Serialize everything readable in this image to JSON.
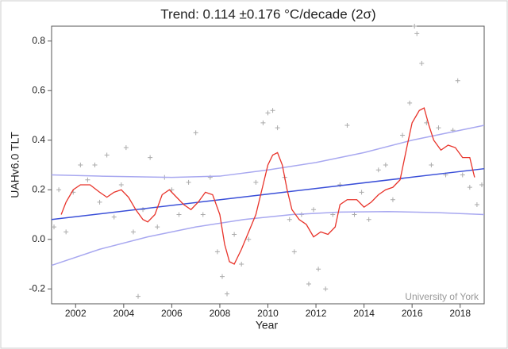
{
  "chart_data": {
    "type": "scatter",
    "title": "Trend: 0.114 ±0.176 °C/decade (2σ)",
    "x_label": "Year",
    "y_label": "UAHv6.0 TLT",
    "annotation": "University of York",
    "xlim": [
      2001,
      2019
    ],
    "ylim": [
      -0.26,
      0.86
    ],
    "xticks": [
      2002,
      2004,
      2006,
      2008,
      2010,
      2012,
      2014,
      2016,
      2018
    ],
    "yticks": [
      -0.2,
      {
        "value": 0,
        "label": "0.0"
      },
      0.2,
      0.4,
      0.6,
      0.8
    ],
    "points": {
      "color": "#aaaaaa",
      "x": [
        2001.1,
        2001.3,
        2001.6,
        2001.9,
        2002.2,
        2002.5,
        2002.8,
        2003.0,
        2003.3,
        2003.6,
        2003.9,
        2004.1,
        2004.4,
        2004.6,
        2004.8,
        2005.1,
        2005.4,
        2005.7,
        2006.0,
        2006.3,
        2006.7,
        2007.0,
        2007.3,
        2007.6,
        2007.9,
        2008.1,
        2008.3,
        2008.6,
        2008.9,
        2009.2,
        2009.5,
        2009.8,
        2010.0,
        2010.2,
        2010.4,
        2010.7,
        2010.9,
        2011.1,
        2011.4,
        2011.7,
        2011.9,
        2012.1,
        2012.4,
        2012.7,
        2013.0,
        2013.3,
        2013.6,
        2013.9,
        2014.2,
        2014.6,
        2014.9,
        2015.2,
        2015.6,
        2015.9,
        2016.1,
        2016.2,
        2016.4,
        2016.6,
        2016.8,
        2017.1,
        2017.4,
        2017.7,
        2017.9,
        2018.1,
        2018.4,
        2018.7,
        2018.9
      ],
      "values": [
        0.05,
        0.2,
        0.03,
        0.19,
        0.3,
        0.24,
        0.3,
        0.15,
        0.34,
        0.09,
        0.22,
        0.37,
        0.03,
        -0.23,
        0.12,
        0.33,
        0.05,
        0.25,
        0.2,
        0.1,
        0.23,
        0.43,
        0.1,
        0.25,
        -0.05,
        -0.15,
        -0.22,
        0.02,
        -0.1,
        0.0,
        0.23,
        0.47,
        0.51,
        0.52,
        0.45,
        0.25,
        0.08,
        -0.05,
        0.1,
        -0.18,
        0.12,
        -0.12,
        -0.2,
        0.1,
        0.22,
        0.46,
        0.1,
        0.19,
        0.08,
        0.28,
        0.3,
        0.16,
        0.42,
        0.55,
        0.86,
        0.83,
        0.71,
        0.47,
        0.3,
        0.45,
        0.26,
        0.44,
        0.64,
        0.26,
        0.21,
        0.14,
        0.22
      ]
    },
    "smooth": {
      "color": "#e8332a",
      "x": [
        2001.4,
        2001.6,
        2001.9,
        2002.2,
        2002.6,
        2003.0,
        2003.3,
        2003.6,
        2003.9,
        2004.2,
        2004.5,
        2004.8,
        2005.0,
        2005.3,
        2005.6,
        2005.9,
        2006.2,
        2006.5,
        2006.8,
        2007.1,
        2007.4,
        2007.7,
        2008.0,
        2008.2,
        2008.4,
        2008.6,
        2008.9,
        2009.2,
        2009.5,
        2009.8,
        2010.0,
        2010.2,
        2010.4,
        2010.6,
        2010.8,
        2011.0,
        2011.3,
        2011.6,
        2011.9,
        2012.2,
        2012.5,
        2012.8,
        2013.0,
        2013.3,
        2013.7,
        2014.0,
        2014.3,
        2014.6,
        2014.9,
        2015.2,
        2015.5,
        2015.8,
        2016.0,
        2016.3,
        2016.5,
        2016.7,
        2016.9,
        2017.2,
        2017.5,
        2017.8,
        2018.1,
        2018.4,
        2018.6
      ],
      "values": [
        0.1,
        0.15,
        0.2,
        0.22,
        0.22,
        0.19,
        0.17,
        0.19,
        0.2,
        0.17,
        0.12,
        0.08,
        0.07,
        0.1,
        0.18,
        0.2,
        0.17,
        0.14,
        0.12,
        0.15,
        0.19,
        0.18,
        0.1,
        -0.02,
        -0.09,
        -0.1,
        -0.04,
        0.03,
        0.1,
        0.22,
        0.3,
        0.34,
        0.35,
        0.3,
        0.2,
        0.12,
        0.08,
        0.06,
        0.01,
        0.03,
        0.02,
        0.05,
        0.14,
        0.16,
        0.16,
        0.13,
        0.15,
        0.18,
        0.2,
        0.21,
        0.24,
        0.38,
        0.47,
        0.52,
        0.53,
        0.46,
        0.4,
        0.36,
        0.38,
        0.37,
        0.33,
        0.33,
        0.25
      ]
    },
    "trend": {
      "color": "#3a4fd8",
      "x": [
        2001,
        2019
      ],
      "values": [
        0.08,
        0.285
      ]
    },
    "ci_upper": {
      "color": "#a8a8f0",
      "x": [
        2001,
        2003,
        2006,
        2008,
        2010,
        2012,
        2014,
        2016,
        2019
      ],
      "values": [
        0.26,
        0.255,
        0.25,
        0.255,
        0.28,
        0.31,
        0.35,
        0.4,
        0.46
      ]
    },
    "ci_lower": {
      "color": "#a8a8f0",
      "x": [
        2001,
        2003,
        2005,
        2007,
        2009,
        2011,
        2013,
        2015,
        2017,
        2019
      ],
      "values": [
        -0.105,
        -0.04,
        0.01,
        0.05,
        0.08,
        0.1,
        0.11,
        0.112,
        0.108,
        0.1
      ]
    }
  }
}
